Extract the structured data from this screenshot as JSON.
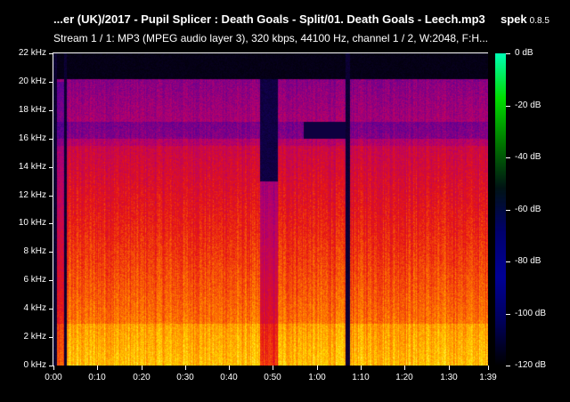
{
  "header": {
    "title": "...er (UK)/2017 - Pupil Splicer : Death Goals - Split/01. Death Goals - Leech.mp3",
    "app_name": "spek",
    "app_version": "0.8.5",
    "stream_info": "Stream 1 / 1: MP3 (MPEG audio layer 3), 320 kbps, 44100 Hz, channel 1 / 2, W:2048, F:H..."
  },
  "spectrogram": {
    "frequency_ticks": [
      "0 kHz",
      "2 kHz",
      "4 kHz",
      "6 kHz",
      "8 kHz",
      "10 kHz",
      "12 kHz",
      "14 kHz",
      "16 kHz",
      "18 kHz",
      "20 kHz",
      "22 kHz"
    ],
    "time_ticks": [
      "0:00",
      "0:10",
      "0:20",
      "0:30",
      "0:40",
      "0:50",
      "1:00",
      "1:10",
      "1:20",
      "1:30",
      "1:39"
    ],
    "duration_seconds": 99,
    "max_frequency_khz": 22,
    "lowpass_cutoff_khz": 20
  },
  "colorbar": {
    "ticks": [
      "0 dB",
      "-20 dB",
      "-40 dB",
      "-60 dB",
      "-80 dB",
      "-100 dB",
      "-120 dB"
    ],
    "palette": [
      "#000000",
      "#14005a",
      "#5a0096",
      "#b4006e",
      "#e61414",
      "#ff7800",
      "#ffdc00",
      "#ffffb4"
    ]
  }
}
